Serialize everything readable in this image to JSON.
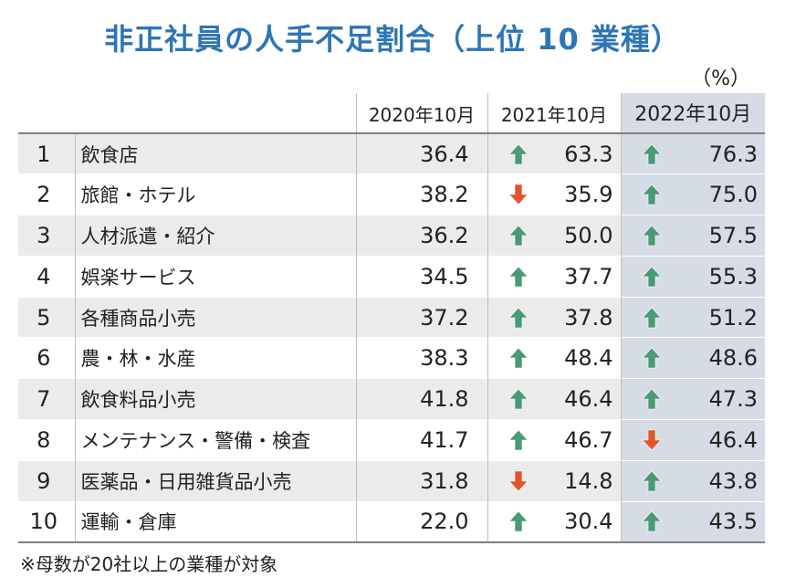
{
  "title": "非正社員の人手不足割合（上位 10 業種）",
  "unit": "（%）",
  "footnote": "※母数が20社以上の業種が対象",
  "colors": {
    "title": "#2e75b6",
    "up_arrow": "#4a9a77",
    "down_arrow": "#e2542a",
    "highlight_column": "#d6dce5",
    "row_stripe": "#ebebeb"
  },
  "chart_data": {
    "type": "table",
    "columns": [
      "2020年10月",
      "2021年10月",
      "2022年10月"
    ],
    "highlighted_column": "2022年10月",
    "rows": [
      {
        "rank": "1",
        "industry": "飲食店",
        "y2020": "36.4",
        "y2021": "63.3",
        "y2021_dir": "up",
        "y2022": "76.3",
        "y2022_dir": "up"
      },
      {
        "rank": "2",
        "industry": "旅館・ホテル",
        "y2020": "38.2",
        "y2021": "35.9",
        "y2021_dir": "down",
        "y2022": "75.0",
        "y2022_dir": "up"
      },
      {
        "rank": "3",
        "industry": "人材派遣・紹介",
        "y2020": "36.2",
        "y2021": "50.0",
        "y2021_dir": "up",
        "y2022": "57.5",
        "y2022_dir": "up"
      },
      {
        "rank": "4",
        "industry": "娯楽サービス",
        "y2020": "34.5",
        "y2021": "37.7",
        "y2021_dir": "up",
        "y2022": "55.3",
        "y2022_dir": "up"
      },
      {
        "rank": "5",
        "industry": "各種商品小売",
        "y2020": "37.2",
        "y2021": "37.8",
        "y2021_dir": "up",
        "y2022": "51.2",
        "y2022_dir": "up"
      },
      {
        "rank": "6",
        "industry": "農・林・水産",
        "y2020": "38.3",
        "y2021": "48.4",
        "y2021_dir": "up",
        "y2022": "48.6",
        "y2022_dir": "up"
      },
      {
        "rank": "7",
        "industry": "飲食料品小売",
        "y2020": "41.8",
        "y2021": "46.4",
        "y2021_dir": "up",
        "y2022": "47.3",
        "y2022_dir": "up"
      },
      {
        "rank": "8",
        "industry": "メンテナンス・警備・検査",
        "y2020": "41.7",
        "y2021": "46.7",
        "y2021_dir": "up",
        "y2022": "46.4",
        "y2022_dir": "down"
      },
      {
        "rank": "9",
        "industry": "医薬品・日用雑貨品小売",
        "y2020": "31.8",
        "y2021": "14.8",
        "y2021_dir": "down",
        "y2022": "43.8",
        "y2022_dir": "up"
      },
      {
        "rank": "10",
        "industry": "運輸・倉庫",
        "y2020": "22.0",
        "y2021": "30.4",
        "y2021_dir": "up",
        "y2022": "43.5",
        "y2022_dir": "up"
      }
    ]
  }
}
